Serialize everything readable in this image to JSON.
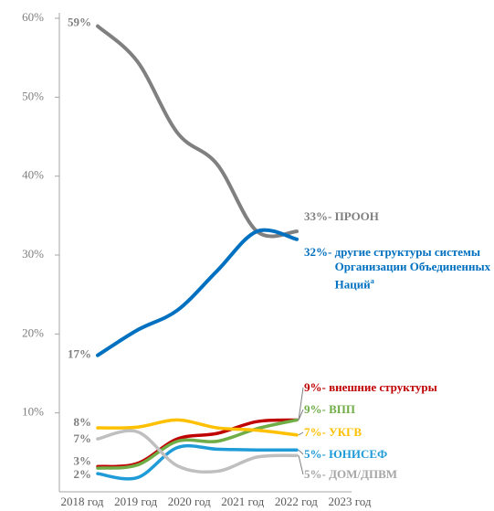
{
  "chart_data": {
    "type": "line",
    "categories": [
      "2018 год",
      "2019 год",
      "2020 год",
      "2021 год",
      "2022 год",
      "2023 год"
    ],
    "ylim": [
      0,
      60
    ],
    "yticks": [
      {
        "value": 10,
        "label": "10%"
      },
      {
        "value": 20,
        "label": "20%"
      },
      {
        "value": 30,
        "label": "30%"
      },
      {
        "value": 40,
        "label": "40%"
      },
      {
        "value": 50,
        "label": "50%"
      },
      {
        "value": 60,
        "label": "60%"
      }
    ],
    "series": [
      {
        "name": "ПРООН",
        "color": "#808080",
        "values": [
          59,
          54.5,
          45.5,
          41.5,
          33,
          33
        ],
        "value_labels": [
          "59%",
          null,
          null,
          null,
          null,
          "33%-"
        ]
      },
      {
        "name": "другие структуры системы Организации Объединенных Наций",
        "note_marker": "a",
        "color": "#0070c0",
        "values": [
          17.3,
          20.5,
          23,
          28,
          33,
          32
        ],
        "value_labels": [
          "17%",
          null,
          null,
          null,
          null,
          "32%-"
        ]
      },
      {
        "name": "внешние структуры",
        "color": "#c00000",
        "values": [
          3.2,
          3.6,
          6.7,
          7.4,
          8.9,
          9.1
        ],
        "value_labels": [
          "3%",
          null,
          null,
          null,
          null,
          "9%-"
        ]
      },
      {
        "name": "ВПП",
        "color": "#70ad47",
        "values": [
          3.0,
          3.4,
          6.4,
          6.4,
          8.0,
          9.1
        ],
        "value_labels": [
          null,
          null,
          null,
          null,
          null,
          "9%-"
        ]
      },
      {
        "name": "УКГВ",
        "color": "#ffc000",
        "values": [
          8.1,
          8.2,
          9.1,
          8.1,
          7.8,
          7.2
        ],
        "value_labels": [
          "8%",
          null,
          null,
          null,
          null,
          "7%-"
        ]
      },
      {
        "name": "ЮНИСЕФ",
        "color": "#1f9bd7",
        "values": [
          2.3,
          1.8,
          5.6,
          5.4,
          5.3,
          5.3
        ],
        "value_labels": [
          "2%",
          null,
          null,
          null,
          null,
          "5%-"
        ]
      },
      {
        "name": "ДОМ/ДПВМ",
        "color": "#bfbfbf",
        "values": [
          6.7,
          7.6,
          3.3,
          2.6,
          4.4,
          4.6
        ],
        "value_labels": [
          "7%",
          null,
          null,
          null,
          null,
          "5%-"
        ]
      }
    ]
  }
}
